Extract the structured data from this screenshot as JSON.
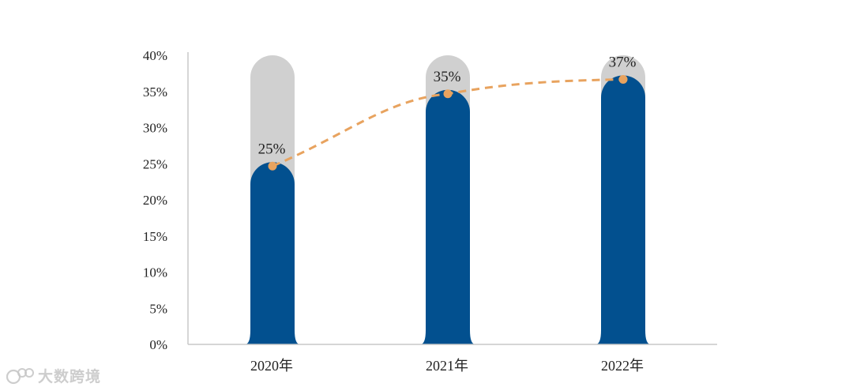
{
  "chart_data": {
    "type": "bar",
    "categories": [
      "2020年",
      "2021年",
      "2022年"
    ],
    "values": [
      25,
      35,
      37
    ],
    "background_max": 40,
    "data_labels": [
      "25%",
      "35%",
      "37%"
    ],
    "ylim": [
      0,
      40
    ],
    "yticks": [
      0,
      5,
      10,
      15,
      20,
      25,
      30,
      35,
      40
    ],
    "ytick_labels": [
      "0%",
      "5%",
      "10%",
      "15%",
      "20%",
      "25%",
      "30%",
      "35%",
      "40%"
    ],
    "overlay_line": {
      "type": "line",
      "style": "dashed",
      "values": [
        25,
        35,
        37
      ]
    },
    "grid": false,
    "legend": "none",
    "colors": {
      "bar": "#02508f",
      "background_bar": "#d0d0d0",
      "line": "#e8a35f",
      "axis": "#c8c8c8"
    }
  },
  "watermark": {
    "text": "大数跨境"
  }
}
